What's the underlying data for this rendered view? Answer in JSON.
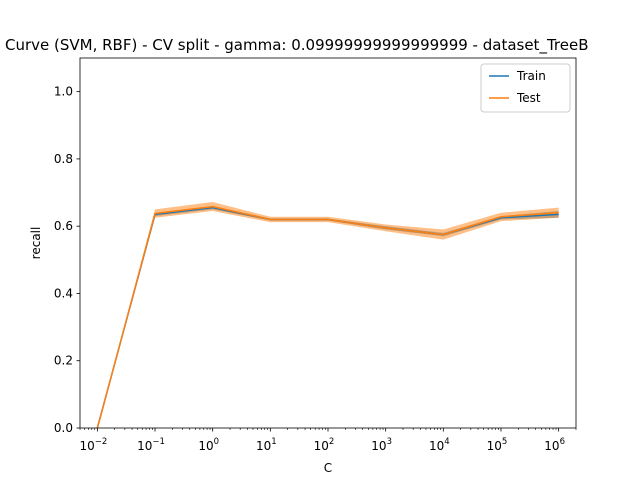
{
  "chart_data": {
    "type": "line",
    "title": "Curve (SVM, RBF) - CV split - gamma: 0.09999999999999999 - dataset_TreeB",
    "xlabel": "C",
    "ylabel": "recall",
    "xscale": "log",
    "xlim": [
      0.005,
      2000000
    ],
    "ylim": [
      0.0,
      1.1
    ],
    "x": [
      0.01,
      0.1,
      1,
      10,
      100,
      1000,
      10000,
      100000,
      1000000
    ],
    "xticks": [
      {
        "base": "10",
        "exp": "−2",
        "value": 0.01
      },
      {
        "base": "10",
        "exp": "−1",
        "value": 0.1
      },
      {
        "base": "10",
        "exp": "0",
        "value": 1
      },
      {
        "base": "10",
        "exp": "1",
        "value": 10
      },
      {
        "base": "10",
        "exp": "2",
        "value": 100
      },
      {
        "base": "10",
        "exp": "3",
        "value": 1000
      },
      {
        "base": "10",
        "exp": "4",
        "value": 10000
      },
      {
        "base": "10",
        "exp": "5",
        "value": 100000
      },
      {
        "base": "10",
        "exp": "6",
        "value": 1000000
      }
    ],
    "yticks": [
      "0.0",
      "0.2",
      "0.4",
      "0.6",
      "0.8",
      "1.0"
    ],
    "ytick_values": [
      0.0,
      0.2,
      0.4,
      0.6,
      0.8,
      1.0
    ],
    "legend_position": "top-right",
    "grid": false,
    "series": [
      {
        "name": "Train",
        "color": "#1f77b4",
        "values": [
          0.0,
          0.635,
          0.655,
          0.62,
          0.62,
          0.595,
          0.575,
          0.625,
          0.635
        ],
        "band_low": [
          0.0,
          0.63,
          0.65,
          0.617,
          0.617,
          0.59,
          0.57,
          0.62,
          0.625
        ],
        "band_high": [
          0.0,
          0.64,
          0.66,
          0.623,
          0.623,
          0.6,
          0.58,
          0.63,
          0.645
        ]
      },
      {
        "name": "Test",
        "color": "#ff7f0e",
        "values": [
          0.0,
          0.638,
          0.658,
          0.62,
          0.62,
          0.595,
          0.575,
          0.628,
          0.64
        ],
        "band_low": [
          0.0,
          0.625,
          0.645,
          0.612,
          0.612,
          0.585,
          0.56,
          0.615,
          0.625
        ],
        "band_high": [
          0.0,
          0.65,
          0.672,
          0.628,
          0.628,
          0.605,
          0.59,
          0.64,
          0.655
        ]
      }
    ]
  }
}
